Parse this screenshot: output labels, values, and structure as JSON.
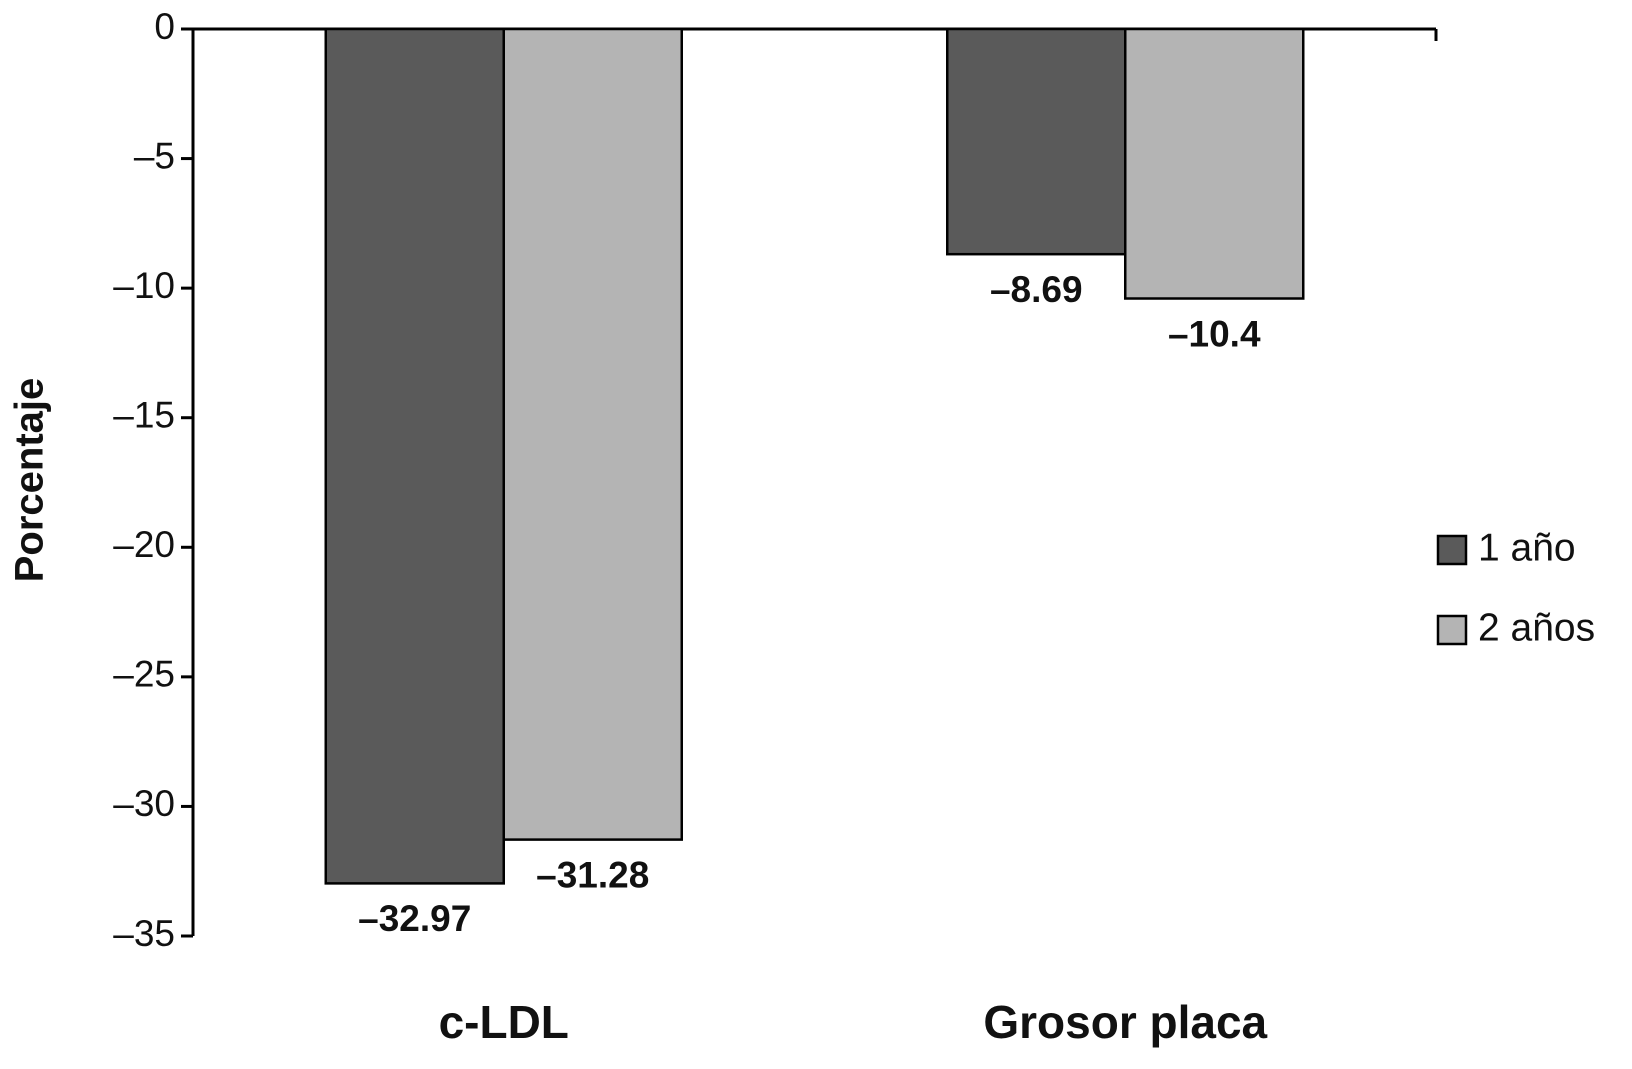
{
  "chart_data": {
    "type": "bar",
    "y_label": "Porcentaje",
    "categories": [
      "c-LDL",
      "Grosor placa"
    ],
    "series": [
      {
        "name": "1 año",
        "color": "#5a5a5a",
        "values": [
          -32.97,
          -8.69
        ],
        "value_labels": [
          "–32.97",
          "–8.69"
        ]
      },
      {
        "name": "2 años",
        "color": "#b4b4b4",
        "values": [
          -31.28,
          -10.4
        ],
        "value_labels": [
          "–31.28",
          "–10.4"
        ]
      }
    ],
    "ylim": [
      -35,
      0
    ],
    "yticks": [
      0,
      {
        "value": -5,
        "label": "–5"
      },
      {
        "value": -10,
        "label": "–10"
      },
      {
        "value": -15,
        "label": "–15"
      },
      {
        "value": -20,
        "label": "–20"
      },
      {
        "value": -25,
        "label": "–25"
      },
      {
        "value": -30,
        "label": "–30"
      },
      {
        "value": -35,
        "label": "–35"
      }
    ],
    "grid": false,
    "legend": "right"
  }
}
